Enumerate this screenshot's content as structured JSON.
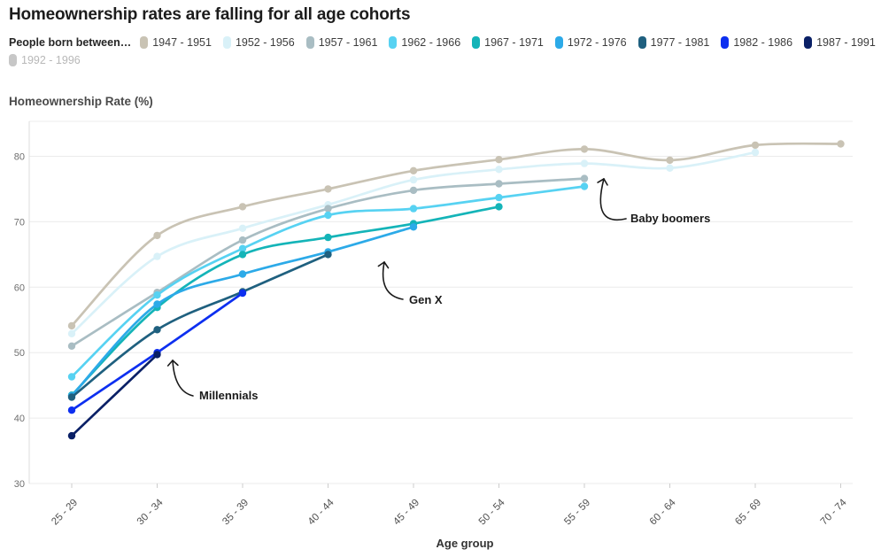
{
  "title": "Homeownership rates are falling for all age cohorts",
  "legend": {
    "heading": "People born between…"
  },
  "y_axis_title": "Homeownership Rate (%)",
  "x_axis_title": "Age group",
  "chart_data": {
    "type": "line",
    "categories": [
      "25 - 29",
      "30 - 34",
      "35 - 39",
      "40 - 44",
      "45 - 49",
      "50 - 54",
      "55 - 59",
      "60 - 64",
      "65 - 69",
      "70 - 74"
    ],
    "xlabel": "Age group",
    "ylabel": "Homeownership Rate (%)",
    "ylim": [
      30,
      85
    ],
    "yticks": [
      30,
      40,
      50,
      60,
      70,
      80
    ],
    "grid": true,
    "legend_position": "top",
    "series": [
      {
        "name": "1947 - 1951",
        "color": "#c9c3b4",
        "values": [
          54.1,
          67.9,
          72.3,
          75.0,
          77.8,
          79.5,
          81.1,
          79.4,
          81.7,
          81.9
        ]
      },
      {
        "name": "1952 - 1956",
        "color": "#d9f1f8",
        "values": [
          52.9,
          64.7,
          69.0,
          72.6,
          76.4,
          78.0,
          78.9,
          78.2,
          80.6
        ]
      },
      {
        "name": "1957 - 1961",
        "color": "#a9bdc3",
        "values": [
          51.0,
          59.2,
          67.2,
          72.0,
          74.8,
          75.8,
          76.6
        ]
      },
      {
        "name": "1962 - 1966",
        "color": "#57d2f2",
        "values": [
          46.3,
          58.8,
          65.9,
          71.0,
          72.0,
          73.7,
          75.4
        ]
      },
      {
        "name": "1967 - 1971",
        "color": "#14b4b8",
        "values": [
          43.5,
          56.9,
          65.0,
          67.6,
          69.7,
          72.3
        ]
      },
      {
        "name": "1972 - 1976",
        "color": "#2caae8",
        "values": [
          43.4,
          57.4,
          62.0,
          65.4,
          69.2
        ]
      },
      {
        "name": "1977 - 1981",
        "color": "#1f607f",
        "values": [
          43.2,
          53.5,
          59.3,
          65.0
        ]
      },
      {
        "name": "1982 - 1986",
        "color": "#0d2ff0",
        "values": [
          41.2,
          50.0,
          59.1
        ]
      },
      {
        "name": "1987 - 1991",
        "color": "#0a2066",
        "values": [
          37.3,
          49.7
        ]
      }
    ],
    "disabled_series": [
      {
        "name": "1992 - 1996",
        "color": "#c7c7c7"
      }
    ],
    "annotations": [
      {
        "text": "Baby boomers",
        "text_x": 712,
        "text_y": 251,
        "tail": [
          707,
          247
        ],
        "ctrl": [
          668,
          256
        ],
        "tip": [
          682,
          202
        ]
      },
      {
        "text": "Gen X",
        "text_x": 462,
        "text_y": 343,
        "tail": [
          455,
          338
        ],
        "ctrl": [
          427,
          333
        ],
        "tip": [
          434,
          296
        ]
      },
      {
        "text": "Millennials",
        "text_x": 225,
        "text_y": 451,
        "tail": [
          218,
          447
        ],
        "ctrl": [
          197,
          442
        ],
        "tip": [
          195,
          407
        ]
      }
    ]
  }
}
